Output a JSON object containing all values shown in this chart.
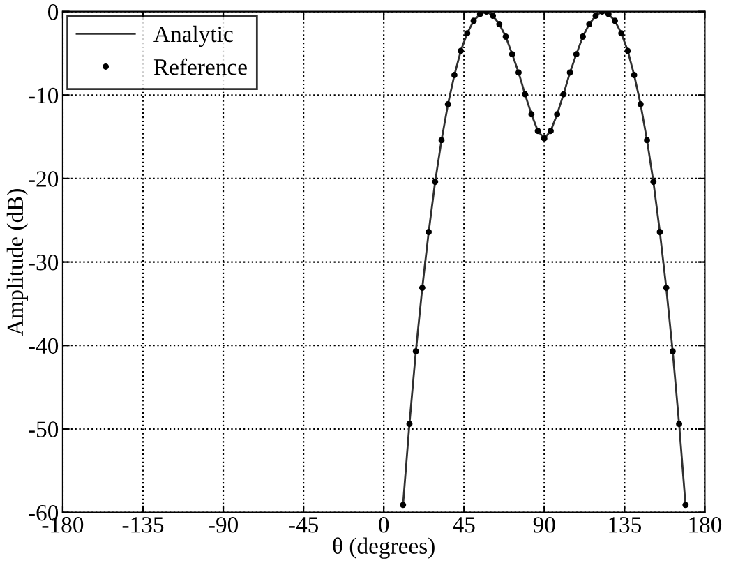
{
  "chart_data": {
    "type": "line",
    "xlabel": "θ (degrees)",
    "ylabel": "Amplitude (dB)",
    "x": [
      10.8,
      14.4,
      18,
      21.6,
      25.2,
      28.8,
      32.4,
      36,
      39.6,
      43.2,
      46.8,
      50.4,
      54,
      57.6,
      61.2,
      64.8,
      68.4,
      72,
      75.6,
      79.2,
      82.8,
      86.4,
      90,
      93.6,
      97.2,
      100.8,
      104.4,
      108,
      111.6,
      115.2,
      118.8,
      122.4,
      126,
      129.6,
      133.2,
      136.8,
      140.4,
      144,
      147.6,
      151.2,
      154.8,
      158.4,
      162,
      165.6,
      169.2
    ],
    "series": [
      {
        "name": "Analytic",
        "color": "#303030",
        "line_style": "solid",
        "marker": "none",
        "values": [
          -59.1,
          -49.4,
          -40.7,
          -33.1,
          -26.4,
          -20.4,
          -15.4,
          -11.1,
          -7.6,
          -4.7,
          -2.6,
          -1.1,
          -0.3,
          0,
          -0.5,
          -1.5,
          -3.0,
          -5.1,
          -7.3,
          -9.9,
          -12.3,
          -14.3,
          -15.2,
          -14.3,
          -12.3,
          -9.9,
          -7.3,
          -5.1,
          -3.0,
          -1.5,
          -0.5,
          0,
          -0.3,
          -1.1,
          -2.6,
          -4.7,
          -7.6,
          -11.1,
          -15.4,
          -20.4,
          -26.4,
          -33.1,
          -40.7,
          -49.4,
          -59.1
        ]
      },
      {
        "name": "Reference",
        "type": "scatter",
        "color": "#000000",
        "marker": "circle",
        "values": [
          -59.1,
          -49.4,
          -40.7,
          -33.1,
          -26.4,
          -20.4,
          -15.4,
          -11.1,
          -7.6,
          -4.7,
          -2.6,
          -1.1,
          -0.3,
          0,
          -0.5,
          -1.5,
          -3.0,
          -5.1,
          -7.3,
          -9.9,
          -12.3,
          -14.3,
          -15.2,
          -14.3,
          -12.3,
          -9.9,
          -7.3,
          -5.1,
          -3.0,
          -1.5,
          -0.5,
          0,
          -0.3,
          -1.1,
          -2.6,
          -4.7,
          -7.6,
          -11.1,
          -15.4,
          -20.4,
          -26.4,
          -33.1,
          -40.7,
          -49.4,
          -59.1
        ]
      }
    ],
    "xlim": [
      -180,
      180
    ],
    "xticks": [
      -180,
      -135,
      -90,
      -45,
      0,
      45,
      90,
      135,
      180
    ],
    "ylim": [
      -60,
      0
    ],
    "yticks": [
      -60,
      -50,
      -40,
      -30,
      -20,
      -10,
      0
    ],
    "grid": true,
    "legend": "top left"
  }
}
